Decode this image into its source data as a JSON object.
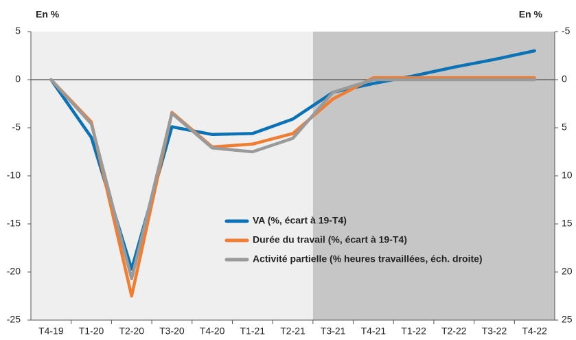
{
  "chart_data": {
    "type": "line",
    "y_label": "En %",
    "y2_label": "En %",
    "categories": [
      "T4-19",
      "T1-20",
      "T2-20",
      "T3-20",
      "T4-20",
      "T1-21",
      "T2-21",
      "T3-21",
      "T4-21",
      "T1-22",
      "T2-22",
      "T3-22",
      "T4-22"
    ],
    "series": [
      {
        "name": "VA (%, écart à 19-T4)",
        "color": "#0a72b5",
        "values": [
          0,
          -6,
          -19.7,
          -4.9,
          -5.7,
          -5.6,
          -4.1,
          -1.3,
          -0.4,
          0.4,
          1.3,
          2.1,
          3.0
        ]
      },
      {
        "name": "Durée du travail (%, écart à 19-T4)",
        "color": "#f07d32",
        "values": [
          0,
          -4.4,
          -22.5,
          -3.4,
          -7.0,
          -6.7,
          -5.6,
          -2.0,
          0.2,
          0.2,
          0.2,
          0.2,
          0.2
        ]
      },
      {
        "name": "Activité partielle (% heures travaillées, éch. droite)",
        "color": "#9a9a9a",
        "axis": "y2",
        "values": [
          0,
          4.6,
          20.7,
          3.5,
          7.1,
          7.5,
          6.1,
          1.3,
          0,
          0,
          0,
          0,
          0
        ]
      }
    ],
    "ylim": [
      -25,
      5
    ],
    "yticks": [
      5,
      0,
      -5,
      -10,
      -15,
      -20,
      -25
    ],
    "y2lim": [
      -5,
      25
    ],
    "y2ticks": [
      -5,
      0,
      5,
      10,
      15,
      20,
      25
    ],
    "y2_inverted": true,
    "shaded_from": "T3-21",
    "legend": "center"
  }
}
